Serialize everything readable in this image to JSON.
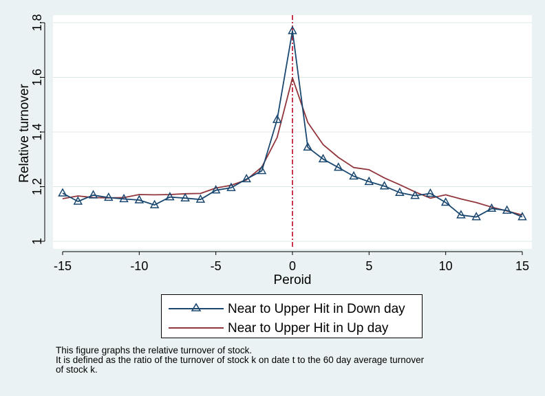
{
  "chart_data": {
    "type": "line",
    "xlabel": "Peroid",
    "ylabel": "Relative turnover",
    "xlim": [
      -15,
      15
    ],
    "ylim": [
      1,
      1.8
    ],
    "xticks": [
      -15,
      -10,
      -5,
      0,
      5,
      10,
      15
    ],
    "xtick_labels": [
      "-15",
      "-10",
      "-5",
      "0",
      "5",
      "10",
      "15"
    ],
    "yticks": [
      1,
      1.2,
      1.4,
      1.6,
      1.8
    ],
    "ytick_labels": [
      "1",
      "1.2",
      "1.4",
      "1.6",
      "1.8"
    ],
    "grid": "horizontal",
    "vline_x": 0,
    "vline_color": "#c00020",
    "x": [
      -15,
      -14,
      -13,
      -12,
      -11,
      -10,
      -9,
      -8,
      -7,
      -6,
      -5,
      -4,
      -3,
      -2,
      -1,
      0,
      1,
      2,
      3,
      4,
      5,
      6,
      7,
      8,
      9,
      10,
      11,
      12,
      13,
      14,
      15
    ],
    "series": [
      {
        "name": "Near to Upper Hit in Down day",
        "color": "#1a476f",
        "marker": "triangle-hollow",
        "values": [
          1.176,
          1.146,
          1.169,
          1.16,
          1.155,
          1.151,
          1.133,
          1.162,
          1.158,
          1.153,
          1.187,
          1.196,
          1.228,
          1.258,
          1.445,
          1.77,
          1.344,
          1.301,
          1.27,
          1.238,
          1.218,
          1.202,
          1.178,
          1.167,
          1.175,
          1.142,
          1.096,
          1.089,
          1.12,
          1.113,
          1.089
        ]
      },
      {
        "name": "Near to Upper Hit in Up day",
        "color": "#90353b",
        "marker": "none",
        "values": [
          1.156,
          1.166,
          1.16,
          1.159,
          1.16,
          1.171,
          1.17,
          1.171,
          1.174,
          1.175,
          1.195,
          1.205,
          1.225,
          1.272,
          1.38,
          1.598,
          1.435,
          1.354,
          1.307,
          1.27,
          1.262,
          1.232,
          1.207,
          1.181,
          1.158,
          1.17,
          1.155,
          1.142,
          1.125,
          1.111,
          1.096
        ]
      }
    ]
  },
  "note": {
    "line1": "This figure graphs the relative turnover of stock.",
    "line2": "It is defined as the ratio of the turnover of stock k on date t to the 60 day average turnover",
    "line3": "of stock k."
  }
}
